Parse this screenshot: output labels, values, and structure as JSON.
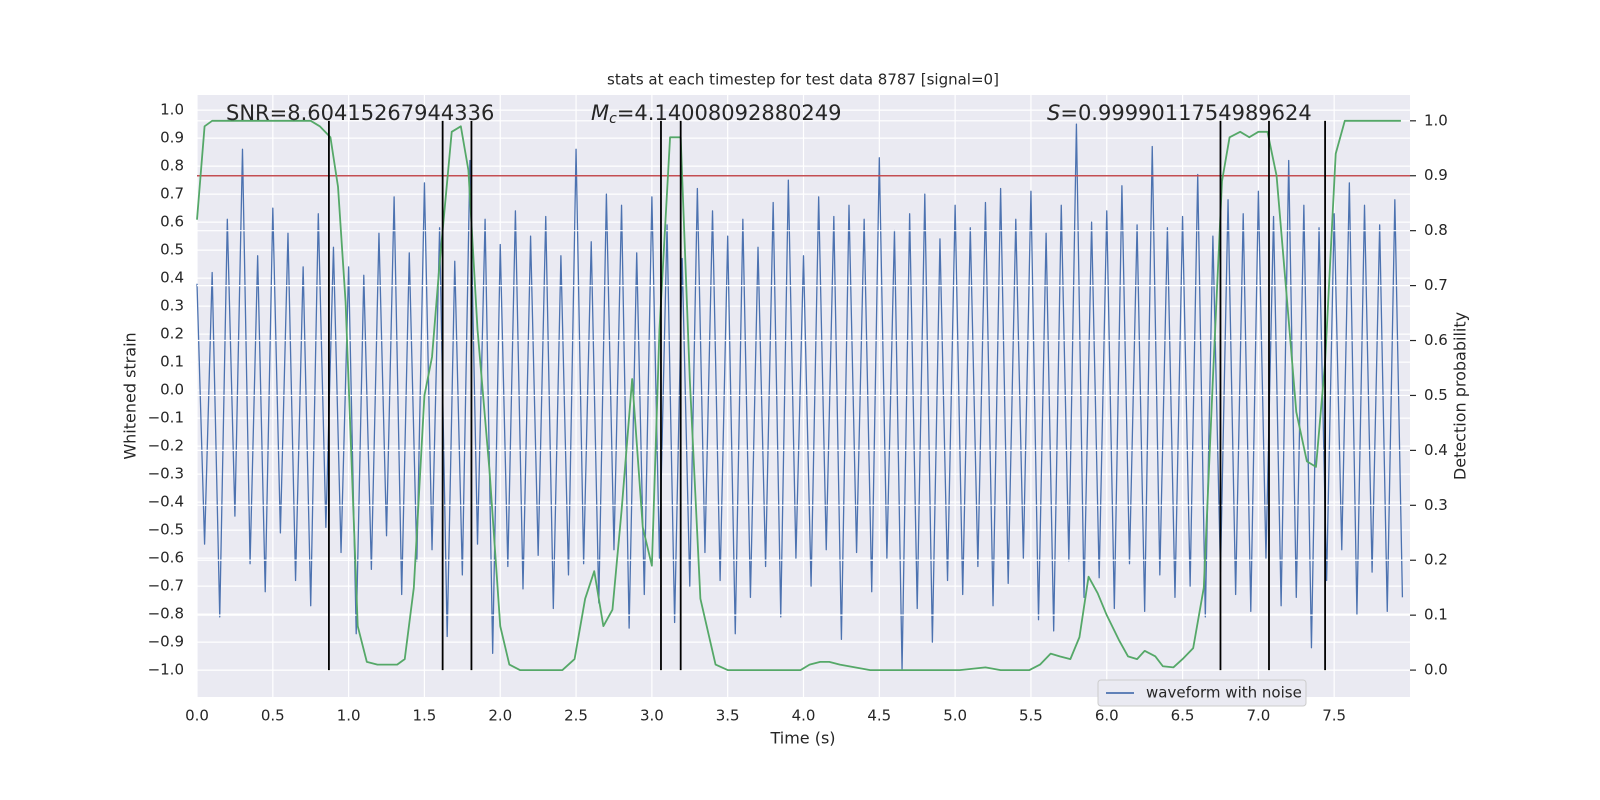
{
  "chart_data": {
    "type": "line",
    "title": "stats at each timestep for test data 8787 [signal=0]",
    "x_label": "Time (s)",
    "y_label": "Whitened strain",
    "y2_label": "Detection probability",
    "xlim": [
      0,
      8.0
    ],
    "ylim": [
      -1.096,
      1.054
    ],
    "y2lim": [
      -0.049,
      1.047
    ],
    "grid": true,
    "legend": "lower right",
    "xticks": [
      {
        "value": 0,
        "label": "0.0"
      },
      {
        "value": 0.5,
        "label": "0.5"
      },
      {
        "value": 1,
        "label": "1.0"
      },
      {
        "value": 1.5,
        "label": "1.5"
      },
      {
        "value": 2,
        "label": "2.0"
      },
      {
        "value": 2.5,
        "label": "2.5"
      },
      {
        "value": 3,
        "label": "3.0"
      },
      {
        "value": 3.5,
        "label": "3.5"
      },
      {
        "value": 4,
        "label": "4.0"
      },
      {
        "value": 4.5,
        "label": "4.5"
      },
      {
        "value": 5,
        "label": "5.0"
      },
      {
        "value": 5.5,
        "label": "5.5"
      },
      {
        "value": 6,
        "label": "6.0"
      },
      {
        "value": 6.5,
        "label": "6.5"
      },
      {
        "value": 7,
        "label": "7.0"
      },
      {
        "value": 7.5,
        "label": "7.5"
      }
    ],
    "yticks": [
      {
        "value": -1,
        "label": "−1.0"
      },
      {
        "value": -0.9,
        "label": "−0.9"
      },
      {
        "value": -0.8,
        "label": "−0.8"
      },
      {
        "value": -0.7,
        "label": "−0.7"
      },
      {
        "value": -0.6,
        "label": "−0.6"
      },
      {
        "value": -0.5,
        "label": "−0.5"
      },
      {
        "value": -0.4,
        "label": "−0.4"
      },
      {
        "value": -0.3,
        "label": "−0.3"
      },
      {
        "value": -0.2,
        "label": "−0.2"
      },
      {
        "value": -0.1,
        "label": "−0.1"
      },
      {
        "value": 0,
        "label": "0.0"
      },
      {
        "value": 0.1,
        "label": "0.1"
      },
      {
        "value": 0.2,
        "label": "0.2"
      },
      {
        "value": 0.3,
        "label": "0.3"
      },
      {
        "value": 0.4,
        "label": "0.4"
      },
      {
        "value": 0.5,
        "label": "0.5"
      },
      {
        "value": 0.6,
        "label": "0.6"
      },
      {
        "value": 0.7,
        "label": "0.7"
      },
      {
        "value": 0.8,
        "label": "0.8"
      },
      {
        "value": 0.9,
        "label": "0.9"
      },
      {
        "value": 1,
        "label": "1.0"
      }
    ],
    "y2ticks": [
      {
        "value": 0,
        "label": "0.0"
      },
      {
        "value": 0.1,
        "label": "0.1"
      },
      {
        "value": 0.2,
        "label": "0.2"
      },
      {
        "value": 0.3,
        "label": "0.3"
      },
      {
        "value": 0.4,
        "label": "0.4"
      },
      {
        "value": 0.5,
        "label": "0.5"
      },
      {
        "value": 0.6,
        "label": "0.6"
      },
      {
        "value": 0.7,
        "label": "0.7"
      },
      {
        "value": 0.8,
        "label": "0.8"
      },
      {
        "value": 0.9,
        "label": "0.9"
      },
      {
        "value": 1,
        "label": "1.0"
      }
    ],
    "series": [
      {
        "name": "waveform with noise",
        "color": "#4c72b0",
        "x": [
          0,
          0.05,
          0.1,
          0.15,
          0.2,
          0.25,
          0.3,
          0.35,
          0.4,
          0.45,
          0.5,
          0.55,
          0.6,
          0.65,
          0.7,
          0.75,
          0.8,
          0.85,
          0.9,
          0.95,
          1,
          1.05,
          1.1,
          1.15,
          1.2,
          1.25,
          1.3,
          1.35,
          1.4,
          1.45,
          1.5,
          1.55,
          1.6,
          1.65,
          1.7,
          1.75,
          1.8,
          1.85,
          1.9,
          1.95,
          2,
          2.05,
          2.1,
          2.15,
          2.2,
          2.25,
          2.3,
          2.35,
          2.4,
          2.45,
          2.5,
          2.55,
          2.6,
          2.65,
          2.7,
          2.75,
          2.8,
          2.85,
          2.9,
          2.95,
          3,
          3.05,
          3.1,
          3.15,
          3.2,
          3.25,
          3.3,
          3.35,
          3.4,
          3.45,
          3.5,
          3.55,
          3.6,
          3.65,
          3.7,
          3.75,
          3.8,
          3.85,
          3.9,
          3.95,
          4,
          4.05,
          4.1,
          4.15,
          4.2,
          4.25,
          4.3,
          4.35,
          4.4,
          4.45,
          4.5,
          4.55,
          4.6,
          4.65,
          4.7,
          4.75,
          4.8,
          4.85,
          4.9,
          4.95,
          5,
          5.05,
          5.1,
          5.15,
          5.2,
          5.25,
          5.3,
          5.35,
          5.4,
          5.45,
          5.5,
          5.55,
          5.6,
          5.65,
          5.7,
          5.75,
          5.8,
          5.85,
          5.9,
          5.95,
          6,
          6.05,
          6.1,
          6.15,
          6.2,
          6.25,
          6.3,
          6.35,
          6.4,
          6.45,
          6.5,
          6.55,
          6.6,
          6.65,
          6.7,
          6.75,
          6.8,
          6.85,
          6.9,
          6.95,
          7,
          7.05,
          7.1,
          7.15,
          7.2,
          7.25,
          7.3,
          7.35,
          7.4,
          7.45,
          7.5,
          7.55,
          7.6,
          7.65,
          7.7,
          7.75,
          7.8,
          7.85,
          7.9,
          7.95
        ],
        "values": [
          0.38,
          -0.55,
          0.42,
          -0.81,
          0.61,
          -0.45,
          0.86,
          -0.62,
          0.48,
          -0.72,
          0.65,
          -0.51,
          0.56,
          -0.68,
          0.44,
          -0.77,
          0.63,
          -0.49,
          0.51,
          -0.58,
          0.44,
          -0.87,
          0.41,
          -0.64,
          0.56,
          -0.52,
          0.69,
          -0.73,
          0.49,
          -0.61,
          0.74,
          -0.57,
          0.58,
          -0.88,
          0.46,
          -0.66,
          0.82,
          -0.55,
          0.61,
          -0.94,
          0.52,
          -0.63,
          0.64,
          -0.71,
          0.55,
          -0.59,
          0.62,
          -0.78,
          0.48,
          -0.66,
          0.86,
          -0.62,
          0.53,
          -0.76,
          0.7,
          -0.57,
          0.66,
          -0.85,
          0.49,
          -0.73,
          0.69,
          -0.6,
          0.59,
          -0.83,
          0.47,
          -0.7,
          0.72,
          -0.58,
          0.64,
          -0.68,
          0.55,
          -0.87,
          0.61,
          -0.74,
          0.51,
          -0.63,
          0.67,
          -0.81,
          0.75,
          -0.6,
          0.48,
          -0.7,
          0.69,
          -0.57,
          0.62,
          -0.89,
          0.66,
          -0.58,
          0.61,
          -0.72,
          0.83,
          -0.6,
          0.57,
          -1.0,
          0.63,
          -0.78,
          0.7,
          -0.9,
          0.54,
          -0.68,
          0.66,
          -0.73,
          0.58,
          -0.63,
          0.67,
          -0.77,
          0.72,
          -0.69,
          0.61,
          -0.6,
          0.71,
          -0.82,
          0.56,
          -0.86,
          0.66,
          -0.61,
          0.95,
          -0.74,
          0.6,
          -0.67,
          0.64,
          -0.78,
          0.73,
          -0.62,
          0.59,
          -0.79,
          0.87,
          -0.66,
          0.58,
          -0.74,
          0.62,
          -0.7,
          0.77,
          -0.81,
          0.55,
          -0.65,
          0.68,
          -0.73,
          0.63,
          -0.79,
          0.71,
          -0.6,
          0.62,
          -0.77,
          0.82,
          -0.74,
          0.66,
          -0.92,
          0.58,
          -0.68,
          0.63,
          -0.57,
          0.74,
          -0.8,
          0.66,
          -0.65,
          0.59,
          -0.79,
          0.68,
          -0.74
        ]
      },
      {
        "color": "#55a868",
        "axis": "y2",
        "x": [
          0,
          0.05,
          0.1,
          0.75,
          0.81,
          0.88,
          0.93,
          0.98,
          1.06,
          1.12,
          1.19,
          1.27,
          1.32,
          1.37,
          1.43,
          1.5,
          1.55,
          1.6,
          1.68,
          1.74,
          1.79,
          1.85,
          1.93,
          2.0,
          2.06,
          2.13,
          2.26,
          2.41,
          2.49,
          2.56,
          2.62,
          2.68,
          2.74,
          2.8,
          2.87,
          2.94,
          3.0,
          3.05,
          3.12,
          3.19,
          3.25,
          3.32,
          3.42,
          3.5,
          3.98,
          4.04,
          4.11,
          4.17,
          4.24,
          4.44,
          4.64,
          5.03,
          5.2,
          5.3,
          5.49,
          5.56,
          5.63,
          5.69,
          5.76,
          5.82,
          5.88,
          5.94,
          6.0,
          6.08,
          6.14,
          6.2,
          6.25,
          6.32,
          6.37,
          6.44,
          6.5,
          6.57,
          6.64,
          6.7,
          6.76,
          6.81,
          6.88,
          6.94,
          7.0,
          7.06,
          7.12,
          7.19,
          7.25,
          7.32,
          7.38,
          7.44,
          7.51,
          7.57,
          7.94
        ],
        "values": [
          0.82,
          0.99,
          1.0,
          1.0,
          0.99,
          0.97,
          0.88,
          0.67,
          0.08,
          0.015,
          0.01,
          0.01,
          0.01,
          0.02,
          0.15,
          0.5,
          0.57,
          0.74,
          0.98,
          0.99,
          0.91,
          0.62,
          0.36,
          0.08,
          0.01,
          0.0,
          0.0,
          0.0,
          0.02,
          0.13,
          0.18,
          0.08,
          0.11,
          0.29,
          0.53,
          0.26,
          0.19,
          0.62,
          0.97,
          0.97,
          0.53,
          0.13,
          0.01,
          0.0,
          0.0,
          0.01,
          0.015,
          0.015,
          0.01,
          0.0,
          0.0,
          0.0,
          0.005,
          0.0,
          0.0,
          0.01,
          0.03,
          0.025,
          0.02,
          0.06,
          0.17,
          0.14,
          0.1,
          0.055,
          0.025,
          0.02,
          0.035,
          0.025,
          0.007,
          0.005,
          0.02,
          0.04,
          0.15,
          0.53,
          0.89,
          0.97,
          0.98,
          0.97,
          0.98,
          0.98,
          0.9,
          0.67,
          0.47,
          0.38,
          0.37,
          0.56,
          0.94,
          1.0,
          1.0
        ]
      }
    ],
    "hlines": [
      {
        "y": 0.9,
        "axis": "y2",
        "color": "#c44e52"
      }
    ],
    "vlines": {
      "x": [
        0.87,
        1.62,
        1.81,
        3.06,
        3.19,
        6.75,
        7.07,
        7.44
      ],
      "ymin": 0,
      "ymax": 1,
      "axis": "y2",
      "color": "#000000"
    },
    "annotations": [
      {
        "text": "SNR=8.60415267944336"
      },
      {
        "symbol": "M",
        "subscript": "c",
        "text": "=4.14008092880249"
      },
      {
        "symbol": "S",
        "text": "=0.9999011754989624"
      }
    ]
  }
}
